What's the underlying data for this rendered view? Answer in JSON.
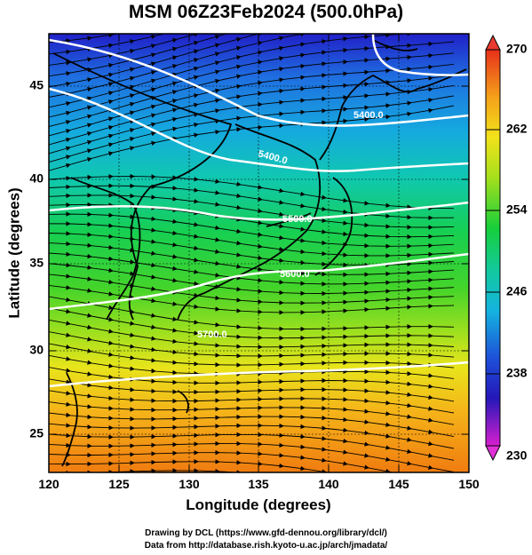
{
  "title": "MSM 06Z23Feb2024 (500.0hPa)",
  "xaxis": {
    "label": "Longitude (degrees)",
    "ticks": [
      120,
      125,
      130,
      135,
      140,
      145,
      150
    ],
    "range": [
      120,
      150
    ]
  },
  "yaxis": {
    "label": "Latitude  (degrees)",
    "ticks": [
      25,
      30,
      35,
      40,
      45
    ],
    "range": [
      22.4,
      47.6
    ]
  },
  "colorbar": {
    "ticks": [
      270,
      262,
      254,
      246,
      238,
      230
    ],
    "range": [
      230,
      270
    ]
  },
  "contours": [
    {
      "label": "5400.0"
    },
    {
      "label": "5400.0"
    },
    {
      "label": "5500.0"
    },
    {
      "label": "5600.0"
    },
    {
      "label": "5700.0"
    }
  ],
  "footer": {
    "line1": "Drawing by DCL (https://www.gfd-dennou.org/library/dcl/)",
    "line2": "Data from http://database.rish.kyoto-u.ac.jp/arch/jmadata/"
  }
}
